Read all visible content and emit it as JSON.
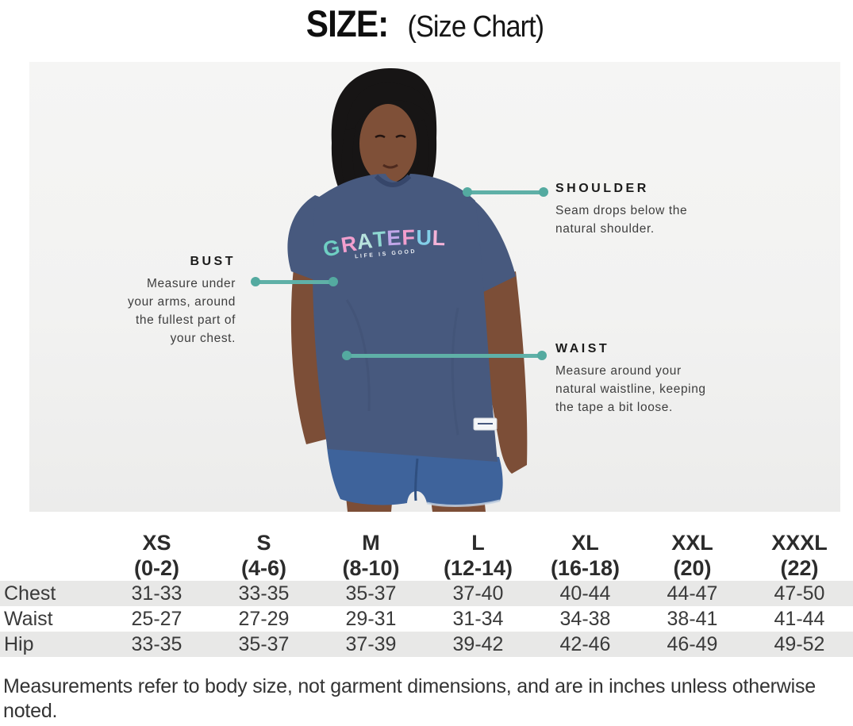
{
  "page": {
    "title_main": "SIZE:",
    "title_sub": "(Size Chart)"
  },
  "diagram": {
    "accent_color": "#5fb0a7",
    "shirt": {
      "word": "GRATEFUL",
      "letter_colors": [
        "#6fcfc3",
        "#f29fce",
        "#b7e3dd",
        "#8fd8d2",
        "#c1a6e8",
        "#f29fce",
        "#83cfe8",
        "#f4b3d8"
      ],
      "tagline": "LIFE IS GOOD"
    },
    "callouts": {
      "shoulder": {
        "label": "SHOULDER",
        "lines": [
          "Seam drops below the",
          "natural shoulder."
        ]
      },
      "bust": {
        "label": "BUST",
        "lines": [
          "Measure under",
          "your arms, around",
          "the fullest part of",
          "your chest."
        ]
      },
      "waist": {
        "label": "WAIST",
        "lines": [
          "Measure around your",
          "natural waistline, keeping",
          "the tape a bit loose."
        ]
      }
    }
  },
  "chart_data": {
    "type": "table",
    "title": "Size Chart",
    "columns": [
      {
        "size": "XS",
        "range": "(0-2)"
      },
      {
        "size": "S",
        "range": "(4-6)"
      },
      {
        "size": "M",
        "range": "(8-10)"
      },
      {
        "size": "L",
        "range": "(12-14)"
      },
      {
        "size": "XL",
        "range": "(16-18)"
      },
      {
        "size": "XXL",
        "range": "(20)"
      },
      {
        "size": "XXXL",
        "range": "(22)"
      }
    ],
    "rows": [
      {
        "label": "Chest",
        "values": [
          "31-33",
          "33-35",
          "35-37",
          "37-40",
          "40-44",
          "44-47",
          "47-50"
        ]
      },
      {
        "label": "Waist",
        "values": [
          "25-27",
          "27-29",
          "29-31",
          "31-34",
          "34-38",
          "38-41",
          "41-44"
        ]
      },
      {
        "label": "Hip",
        "values": [
          "33-35",
          "35-37",
          "37-39",
          "39-42",
          "42-46",
          "46-49",
          "49-52"
        ]
      }
    ]
  },
  "footer": {
    "note": "Measurements refer to body size, not garment dimensions, and are in inches unless otherwise noted."
  }
}
